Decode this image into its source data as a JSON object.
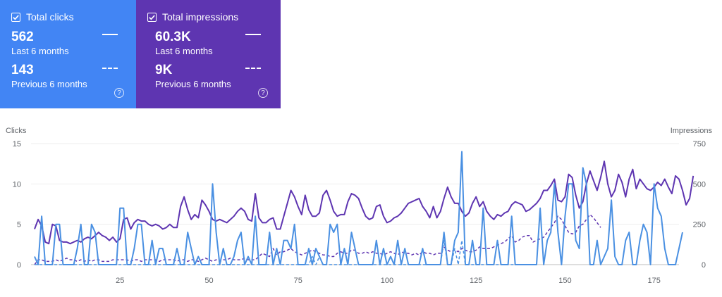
{
  "cards": {
    "clicks": {
      "title": "Total clicks",
      "current_value": "562",
      "current_label": "Last 6 months",
      "previous_value": "143",
      "previous_label": "Previous 6 months",
      "color": "#4285f4",
      "help": "?"
    },
    "impressions": {
      "title": "Total impressions",
      "current_value": "60.3K",
      "current_label": "Last 6 months",
      "previous_value": "9K",
      "previous_label": "Previous 6 months",
      "color": "#5e35b1",
      "help": "?"
    }
  },
  "chart_data": {
    "type": "line",
    "left_axis_label": "Clicks",
    "right_axis_label": "Impressions",
    "left_ticks": [
      0,
      5,
      10,
      15
    ],
    "right_ticks": [
      0,
      250,
      500,
      750
    ],
    "x_ticks": [
      25,
      50,
      75,
      100,
      125,
      150,
      175
    ],
    "xlim": [
      0,
      182
    ],
    "ylim_left": [
      0,
      15
    ],
    "ylim_right": [
      0,
      750
    ],
    "series": [
      {
        "name": "Clicks (Last 6 months)",
        "axis": "left",
        "color": "#4a90e2",
        "style": "solid",
        "values": [
          1,
          0,
          6,
          0,
          0,
          0,
          5,
          5,
          0,
          0,
          0,
          0,
          2,
          5,
          0,
          0,
          5,
          4,
          0,
          0,
          0,
          0,
          0,
          0,
          7,
          7,
          0,
          0,
          2,
          5,
          5,
          0,
          0,
          3,
          0,
          2,
          2,
          0,
          0,
          0,
          2,
          0,
          0,
          4,
          2,
          0,
          1,
          0,
          0,
          0,
          10,
          4,
          0,
          2,
          0,
          0,
          1,
          3,
          4,
          0,
          1,
          0,
          6,
          0,
          0,
          0,
          4,
          0,
          2,
          0,
          3,
          3,
          2,
          5,
          0,
          0,
          0,
          2,
          0,
          2,
          1,
          0,
          0,
          5,
          4,
          5,
          0,
          2,
          0,
          4,
          2,
          0,
          0,
          0,
          0,
          0,
          3,
          0,
          2,
          0,
          1,
          0,
          3,
          0,
          2,
          0,
          0,
          0,
          0,
          2,
          0,
          0,
          0,
          0,
          0,
          4,
          0,
          0,
          3,
          4,
          14,
          0,
          0,
          3,
          0,
          0,
          7,
          0,
          0,
          0,
          3,
          0,
          0,
          0,
          6,
          0,
          0,
          0,
          0,
          0,
          0,
          0,
          7,
          0,
          3,
          4,
          10,
          4,
          0,
          6,
          10,
          10,
          3,
          2,
          12,
          10,
          0,
          0,
          3,
          0,
          1,
          2,
          8,
          1,
          0,
          0,
          3,
          4,
          0,
          0,
          3,
          5,
          4,
          0,
          10,
          7,
          6,
          2,
          0,
          0,
          0,
          2,
          4
        ]
      },
      {
        "name": "Clicks (Previous 6 months)",
        "axis": "left",
        "color": "#4a90e2",
        "style": "dashed",
        "values": [
          0,
          0,
          0,
          0,
          0,
          0,
          0,
          0,
          0,
          0,
          0,
          0,
          0,
          0,
          0,
          0,
          0,
          0,
          0,
          0,
          0,
          0,
          0,
          0,
          0,
          0,
          0,
          0,
          0,
          0,
          0,
          0,
          0,
          0,
          0,
          0,
          0,
          0,
          0,
          0,
          0,
          0,
          0,
          0,
          0,
          0,
          0,
          0,
          0,
          0,
          0,
          0,
          0,
          0,
          0,
          0,
          0,
          0,
          0,
          0,
          0,
          0,
          0,
          0,
          0,
          0,
          0,
          0,
          0,
          0,
          0,
          0,
          0,
          0,
          0,
          0,
          0,
          0,
          1,
          0,
          1,
          0,
          0,
          0,
          0,
          0,
          0,
          0,
          0,
          0,
          0,
          0,
          0,
          0,
          0,
          0,
          0,
          0,
          0,
          0,
          0,
          0,
          0,
          0,
          0,
          0,
          0,
          0,
          0,
          0,
          0,
          0,
          0,
          0,
          0,
          3,
          0,
          0,
          2,
          0,
          3,
          0,
          0,
          0,
          0,
          0,
          0,
          0,
          0,
          0,
          0,
          0,
          0,
          0,
          0,
          0,
          0,
          0,
          0,
          0
        ]
      },
      {
        "name": "Impressions (Last 6 months)",
        "axis": "right",
        "color": "#5e35b1",
        "style": "solid",
        "values": [
          220,
          280,
          240,
          140,
          130,
          250,
          240,
          150,
          140,
          140,
          130,
          140,
          150,
          140,
          160,
          170,
          160,
          180,
          200,
          180,
          170,
          150,
          170,
          140,
          160,
          280,
          290,
          220,
          260,
          280,
          270,
          270,
          250,
          240,
          250,
          240,
          220,
          230,
          250,
          230,
          230,
          360,
          420,
          340,
          280,
          310,
          290,
          400,
          370,
          330,
          280,
          270,
          280,
          270,
          260,
          280,
          300,
          330,
          350,
          330,
          280,
          270,
          440,
          290,
          260,
          260,
          280,
          290,
          220,
          220,
          300,
          380,
          460,
          420,
          360,
          310,
          430,
          340,
          300,
          300,
          320,
          430,
          460,
          400,
          330,
          300,
          310,
          310,
          390,
          440,
          430,
          410,
          350,
          300,
          280,
          290,
          360,
          370,
          300,
          260,
          270,
          290,
          300,
          320,
          350,
          380,
          390,
          400,
          410,
          360,
          330,
          290,
          360,
          290,
          330,
          410,
          480,
          420,
          380,
          380,
          330,
          300,
          320,
          380,
          420,
          360,
          390,
          330,
          300,
          280,
          310,
          300,
          320,
          330,
          370,
          390,
          380,
          370,
          330,
          340,
          360,
          380,
          410,
          460,
          460,
          490,
          530,
          400,
          390,
          420,
          560,
          540,
          430,
          350,
          390,
          500,
          580,
          520,
          460,
          540,
          640,
          500,
          420,
          460,
          560,
          510,
          420,
          530,
          590,
          470,
          530,
          500,
          470,
          460,
          480,
          510,
          490,
          530,
          480,
          440,
          550,
          530,
          460,
          370,
          410,
          550
        ]
      },
      {
        "name": "Impressions (Previous 6 months)",
        "axis": "right",
        "color": "#5e35b1",
        "style": "dashed",
        "values": [
          0,
          30,
          30,
          20,
          20,
          20,
          30,
          20,
          30,
          40,
          30,
          30,
          20,
          30,
          20,
          30,
          20,
          30,
          30,
          20,
          20,
          20,
          30,
          30,
          30,
          30,
          30,
          20,
          30,
          30,
          20,
          30,
          30,
          30,
          30,
          20,
          30,
          30,
          30,
          30,
          20,
          30,
          30,
          20,
          30,
          30,
          20,
          30,
          40,
          30,
          20,
          30,
          20,
          30,
          30,
          40,
          30,
          30,
          30,
          40,
          30,
          30,
          30,
          50,
          70,
          60,
          50,
          100,
          60,
          80,
          80,
          90,
          100,
          80,
          70,
          60,
          70,
          80,
          90,
          80,
          70,
          60,
          60,
          50,
          50,
          70,
          80,
          70,
          70,
          90,
          90,
          70,
          70,
          80,
          70,
          80,
          70,
          70,
          60,
          70,
          80,
          70,
          60,
          80,
          70,
          70,
          60,
          70,
          60,
          80,
          70,
          70,
          60,
          70,
          70,
          110,
          90,
          80,
          90,
          80,
          100,
          90,
          80,
          80,
          90,
          110,
          100,
          100,
          100,
          110,
          120,
          130,
          140,
          160,
          180,
          140,
          150,
          170,
          180,
          180,
          140,
          150,
          160,
          170,
          200,
          230,
          260,
          300,
          280,
          240,
          200,
          190,
          200,
          240,
          250,
          280,
          310,
          290,
          260,
          230
        ]
      }
    ]
  }
}
